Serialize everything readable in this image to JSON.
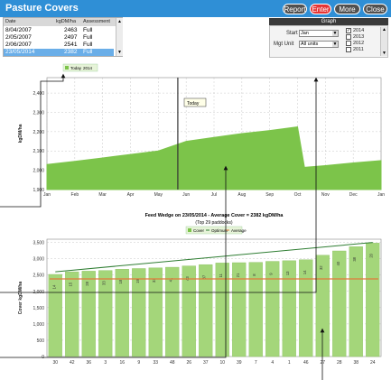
{
  "window": {
    "title": "Pasture Covers"
  },
  "toolbar": {
    "report": "Report",
    "enter": "Enter",
    "more": "More",
    "close": "Close"
  },
  "covers_table": {
    "columns": [
      "Date",
      "kgDM/ha",
      "Assessment"
    ],
    "rows": [
      {
        "date": "8/04/2007",
        "value": "2463",
        "assessment": "Full"
      },
      {
        "date": "2/05/2007",
        "value": "2497",
        "assessment": "Full"
      },
      {
        "date": "2/06/2007",
        "value": "2541",
        "assessment": "Full"
      },
      {
        "date": "23/05/2014",
        "value": "2382",
        "assessment": "Full"
      }
    ]
  },
  "graph_panel": {
    "heading": "Graph",
    "start_label": "Start",
    "start_value": "Jan",
    "mgt_unit_label": "Mgt Unit",
    "mgt_unit_value": "All units",
    "years": [
      {
        "label": "2014",
        "checked": true
      },
      {
        "label": "2013",
        "checked": false
      },
      {
        "label": "2012",
        "checked": false
      },
      {
        "label": "2011",
        "checked": false
      }
    ]
  },
  "chart_data": [
    {
      "type": "area",
      "legend": [
        "Today",
        "2014"
      ],
      "ylabel": "kgDM/ha",
      "categories": [
        "Jan",
        "Feb",
        "Mar",
        "Apr",
        "May",
        "Jun",
        "Jul",
        "Aug",
        "Sep",
        "Oct",
        "Nov",
        "Dec",
        "Jan"
      ],
      "yticks": [
        1900,
        2000,
        2100,
        2200,
        2300,
        2400
      ],
      "ylim": [
        1900,
        2480
      ],
      "series": [
        {
          "name": "2014",
          "x": [
            0,
            1,
            2,
            3,
            4,
            5,
            6,
            7,
            8,
            9,
            9.25,
            10,
            11,
            12
          ],
          "values": [
            2030,
            2046,
            2064,
            2082,
            2100,
            2150,
            2170,
            2190,
            2206,
            2225,
            2015,
            2024,
            2038,
            2050
          ]
        }
      ],
      "today_marker": {
        "label": "Today"
      },
      "grid": true
    },
    {
      "type": "bar",
      "title": "Feed Wedge on 23/05/2014 - Average Cover = 2382 kgDM/ha",
      "subtitle": "(Top 29 paddocks)",
      "legend": [
        "Cover",
        "Optimum",
        "Average"
      ],
      "ylabel": "Cover kgDM/ha",
      "yticks": [
        0,
        500,
        1000,
        1500,
        2000,
        2500,
        3000,
        3500
      ],
      "ylim": [
        0,
        3600
      ],
      "categories": [
        "30",
        "42",
        "36",
        "3",
        "16",
        "9",
        "33",
        "48",
        "26",
        "37",
        "10",
        "39",
        "7",
        "4",
        "1",
        "46",
        "27",
        "28",
        "38",
        "24"
      ],
      "bar_labels": [
        "14",
        "15",
        "28",
        "33",
        "18",
        "19",
        "33",
        "41",
        "43",
        "37",
        "11",
        "21",
        "8",
        "9",
        "13",
        "14",
        "32",
        "40",
        "38",
        "20"
      ],
      "values": [
        2520,
        2600,
        2620,
        2640,
        2680,
        2700,
        2720,
        2740,
        2780,
        2820,
        2870,
        2880,
        2890,
        2920,
        2940,
        2970,
        3110,
        3240,
        3370,
        3480
      ],
      "optimum": [
        2600,
        3500
      ],
      "average": 2382,
      "grid": true
    }
  ]
}
